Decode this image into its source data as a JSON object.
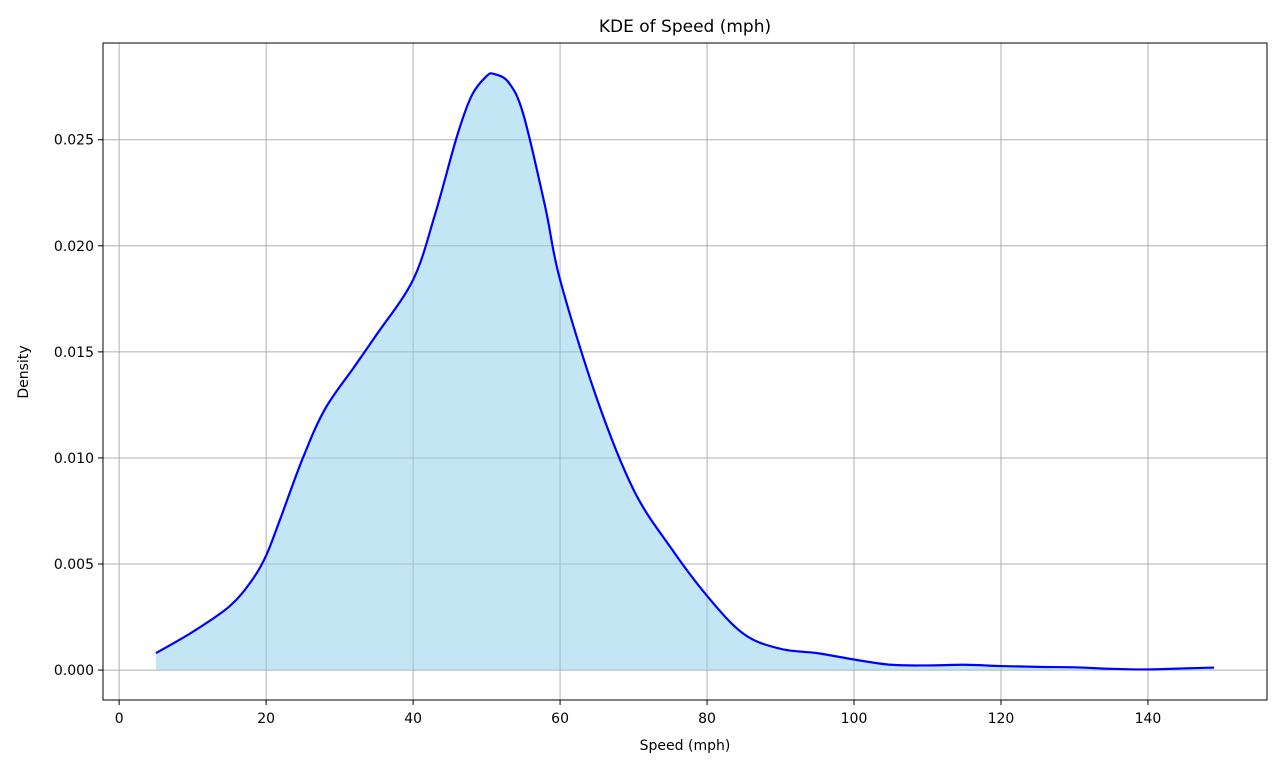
{
  "chart_data": {
    "type": "area",
    "title": "KDE of Speed (mph)",
    "xlabel": "Speed (mph)",
    "ylabel": "Density",
    "xlim": [
      -2.2,
      156.2
    ],
    "ylim": [
      -0.00141,
      0.02956
    ],
    "xticks": [
      0,
      20,
      40,
      60,
      80,
      100,
      120,
      140
    ],
    "yticks": [
      0.0,
      0.005,
      0.01,
      0.015,
      0.02,
      0.025
    ],
    "ytick_labels": [
      "0.000",
      "0.005",
      "0.010",
      "0.015",
      "0.020",
      "0.025"
    ],
    "grid": true,
    "line_color": "#0000ff",
    "fill_color": "#87ceeb",
    "fill_opacity": 0.5,
    "series": [
      {
        "x": [
          5,
          10,
          15,
          18,
          20,
          22,
          25,
          28,
          32,
          35,
          40,
          43,
          46,
          48,
          50,
          51,
          53,
          55,
          58,
          60,
          65,
          70,
          75,
          80,
          85,
          90,
          95,
          100,
          105,
          110,
          115,
          120,
          125,
          130,
          135,
          140,
          145,
          149
        ],
        "y": [
          0.0008,
          0.0018,
          0.003,
          0.0042,
          0.0054,
          0.0072,
          0.01,
          0.0123,
          0.0143,
          0.0158,
          0.0184,
          0.0215,
          0.0252,
          0.0271,
          0.028,
          0.0281,
          0.0277,
          0.0262,
          0.0218,
          0.0184,
          0.0128,
          0.0085,
          0.0058,
          0.0035,
          0.0017,
          0.001,
          0.0008,
          0.0005,
          0.00025,
          0.00022,
          0.00025,
          0.00019,
          0.00015,
          0.00013,
          6e-05,
          3e-05,
          8e-05,
          0.00012
        ]
      }
    ]
  }
}
